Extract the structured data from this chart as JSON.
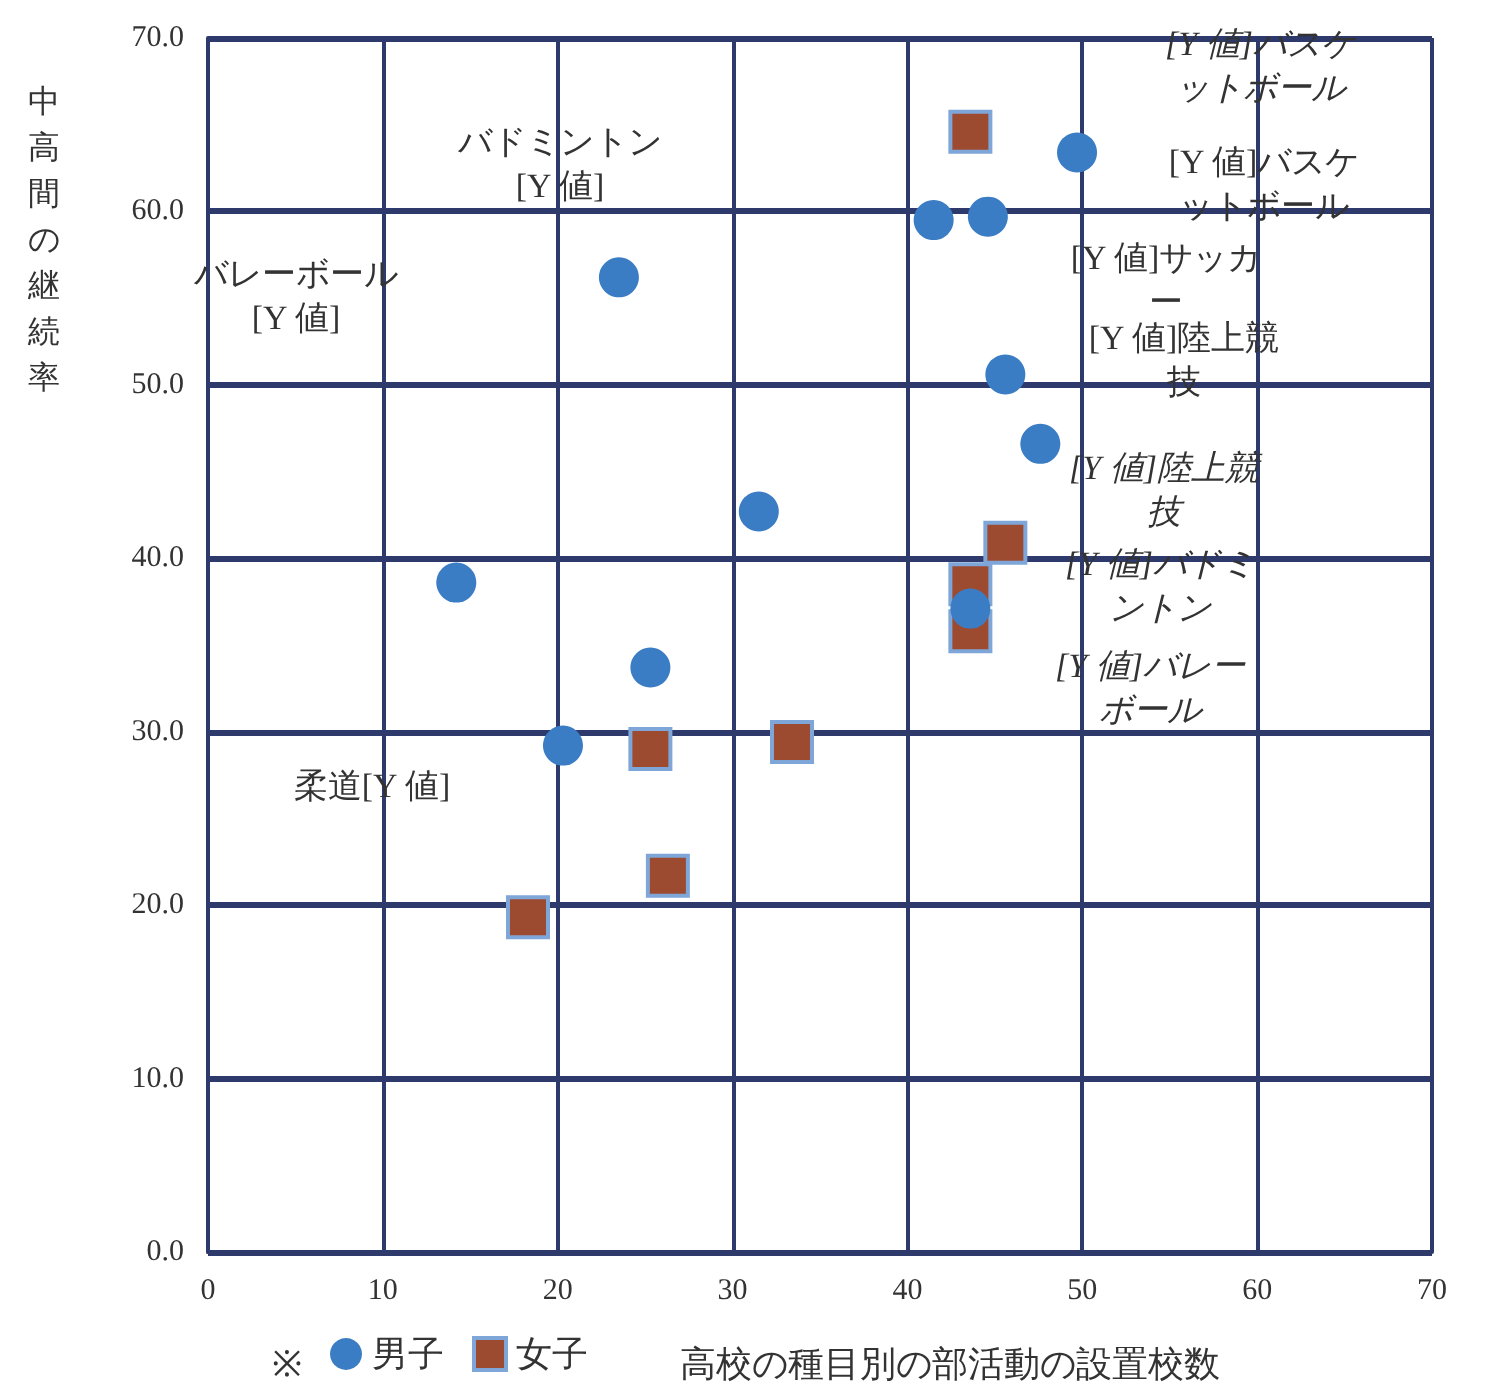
{
  "chart_data": {
    "type": "scatter",
    "xlabel": "高校の種目別の部活動の設置校数",
    "ylabel": "中高間の継続率",
    "legend_title": "※",
    "legend": "bottom",
    "grid": true,
    "xlim": [
      0,
      70
    ],
    "xticks": [
      0,
      10,
      20,
      30,
      40,
      50,
      60,
      70
    ],
    "ylim": [
      0,
      70
    ],
    "yticks": [
      {
        "value": 0,
        "label": "0.0"
      },
      {
        "value": 10,
        "label": "10.0"
      },
      {
        "value": 20,
        "label": "20.0"
      },
      {
        "value": 30,
        "label": "30.0"
      },
      {
        "value": 40,
        "label": "40.0"
      },
      {
        "value": 50,
        "label": "50.0"
      },
      {
        "value": 60,
        "label": "60.0"
      },
      {
        "value": 70,
        "label": "70.0"
      }
    ],
    "series": [
      {
        "name": "男子",
        "color": "#3b7dc4",
        "marker": "circle",
        "x": [
          49.7,
          41.5,
          44.6,
          23.5,
          45.6,
          47.6,
          31.5,
          14.2,
          43.6,
          25.3,
          20.3
        ],
        "values": [
          63.4,
          59.5,
          59.7,
          56.2,
          50.6,
          46.6,
          42.7,
          38.6,
          37.1,
          33.7,
          29.2
        ]
      },
      {
        "name": "女子",
        "color": "#9c4a30",
        "marker": "square",
        "x": [
          43.6,
          45.6,
          43.6,
          43.6,
          25.3,
          33.4,
          26.3,
          18.3
        ],
        "values": [
          64.6,
          40.9,
          38.5,
          35.8,
          29.0,
          29.4,
          21.7,
          19.3
        ]
      }
    ],
    "annotations": [
      "バドミントン[Y 値]",
      "バレーボール[Y 値]",
      "[Y 値]サッカー",
      "[Y 値]陸上競技",
      "[Y 値]バスケットボール",
      "柔道[Y 値]",
      "[Y 値]バスケットボール",
      "[Y 値]陸上競技",
      "[Y 値]バドミントン",
      "[Y 値]バレーボール"
    ]
  }
}
